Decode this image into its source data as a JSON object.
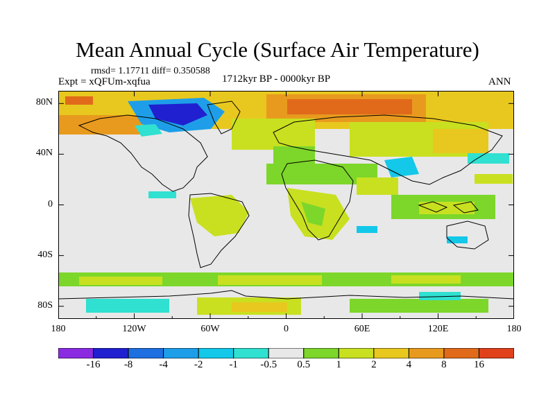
{
  "title": "Mean Annual Cycle (Surface Air Temperature)",
  "stats_label": "rmsd= 1.17711 diff= 0.350588",
  "experiment_label": "Expt = xQFUm-xqfua",
  "period_label": "1712kyr BP - 0000kyr BP",
  "season_label": "ANN",
  "axes": {
    "lat_ticks": [
      {
        "label": "80N",
        "value": 80
      },
      {
        "label": "40N",
        "value": 40
      },
      {
        "label": "0",
        "value": 0
      },
      {
        "label": "40S",
        "value": -40
      },
      {
        "label": "80S",
        "value": -80
      }
    ],
    "lon_ticks": [
      {
        "label": "180",
        "value": -180
      },
      {
        "label": "120W",
        "value": -120
      },
      {
        "label": "60W",
        "value": -60
      },
      {
        "label": "0",
        "value": 0
      },
      {
        "label": "60E",
        "value": 60
      },
      {
        "label": "120E",
        "value": 120
      },
      {
        "label": "180",
        "value": 180
      }
    ],
    "lat_range": [
      -90,
      90
    ],
    "lon_range": [
      -180,
      180
    ]
  },
  "colorbar": {
    "colors": [
      "#8a2be2",
      "#2020d0",
      "#1e6fe0",
      "#1e9ee8",
      "#13c8e8",
      "#30e0d0",
      "#e8e8e8",
      "#7dd62a",
      "#c8e020",
      "#e8c81e",
      "#e89a1e",
      "#e06a1a",
      "#e0401a"
    ],
    "labels": [
      "-16",
      "-8",
      "-4",
      "-2",
      "-1",
      "-0.5",
      "0.5",
      "1",
      "2",
      "4",
      "8",
      "16"
    ]
  },
  "colors": {
    "neutral": "#e8e8e8",
    "land_outline": "#000000"
  }
}
